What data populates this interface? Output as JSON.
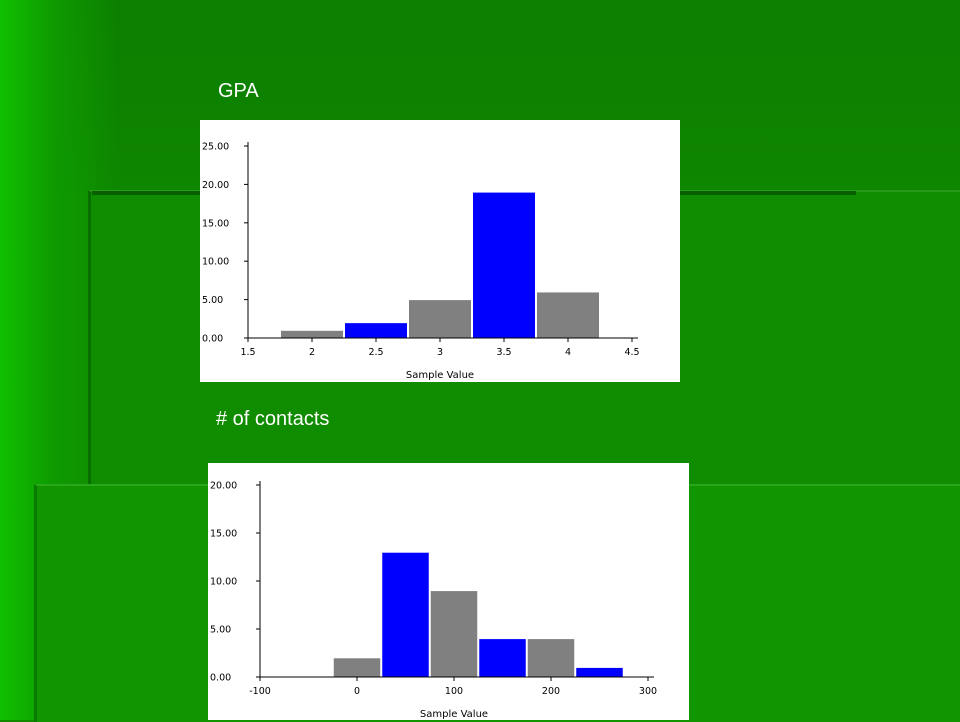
{
  "slide": {
    "chart1_heading": "GPA",
    "chart2_heading": "# of contacts"
  },
  "colors": {
    "background": "#118a00",
    "bar_blue": "#0000ff",
    "bar_gray": "#808080"
  },
  "chart_data": [
    {
      "type": "bar",
      "title": "",
      "xlabel": "Sample Value",
      "ylabel": "",
      "x_ticks": [
        "1.5",
        "2",
        "2.5",
        "3",
        "3.5",
        "4",
        "4.5"
      ],
      "y_ticks": [
        "0.00",
        "5.00",
        "10.00",
        "15.00",
        "20.00",
        "25.00"
      ],
      "xlim": [
        1.5,
        4.5
      ],
      "ylim": [
        0,
        25
      ],
      "bins": [
        {
          "from": 1.75,
          "to": 2.25,
          "value": 1,
          "color": "gray"
        },
        {
          "from": 2.25,
          "to": 2.75,
          "value": 2,
          "color": "blue"
        },
        {
          "from": 2.75,
          "to": 3.25,
          "value": 5,
          "color": "gray"
        },
        {
          "from": 3.25,
          "to": 3.75,
          "value": 19,
          "color": "blue"
        },
        {
          "from": 3.75,
          "to": 4.25,
          "value": 6,
          "color": "gray"
        }
      ]
    },
    {
      "type": "bar",
      "title": "",
      "xlabel": "Sample Value",
      "ylabel": "",
      "x_ticks": [
        "-100",
        "0",
        "100",
        "200",
        "300"
      ],
      "y_ticks": [
        "0.00",
        "5.00",
        "10.00",
        "15.00",
        "20.00"
      ],
      "xlim": [
        -100,
        300
      ],
      "ylim": [
        0,
        20
      ],
      "bins": [
        {
          "from": -25,
          "to": 25,
          "value": 2,
          "color": "gray"
        },
        {
          "from": 25,
          "to": 75,
          "value": 13,
          "color": "blue"
        },
        {
          "from": 75,
          "to": 125,
          "value": 9,
          "color": "gray"
        },
        {
          "from": 125,
          "to": 175,
          "value": 4,
          "color": "blue"
        },
        {
          "from": 175,
          "to": 225,
          "value": 4,
          "color": "gray"
        },
        {
          "from": 225,
          "to": 275,
          "value": 1,
          "color": "blue"
        }
      ]
    }
  ]
}
